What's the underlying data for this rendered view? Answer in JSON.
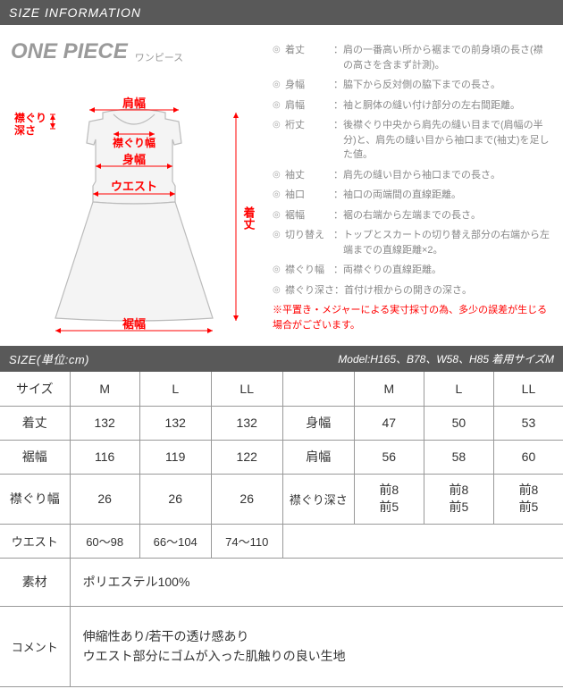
{
  "header": {
    "title": "SIZE INFORMATION"
  },
  "product_title": {
    "en": "ONE PIECE",
    "jp": "ワンピース"
  },
  "diagram": {
    "labels": {
      "katahaba": "肩幅",
      "eri_fukasa_l1": "襟ぐり",
      "eri_fukasa_l2": "深さ",
      "eri_haba": "襟ぐり幅",
      "mihaba": "身幅",
      "waist": "ウエスト",
      "kitake": "着丈",
      "susohaba": "裾幅"
    },
    "colors": {
      "line": "#f00",
      "text": "#f00",
      "garment_stroke": "#bbb",
      "garment_fill": "#f4f4f4"
    }
  },
  "definitions": [
    {
      "label": "着丈",
      "text": "肩の一番高い所から裾までの前身頃の長さ(襟の高さを含まず計測)。"
    },
    {
      "label": "身幅",
      "text": "脇下から反対側の脇下までの長さ。"
    },
    {
      "label": "肩幅",
      "text": "袖と胴体の縫い付け部分の左右間距離。"
    },
    {
      "label": "裄丈",
      "text": "後襟ぐり中央から肩先の縫い目まで(肩幅の半分)と、肩先の縫い目から袖口まで(袖丈)を足した値。"
    },
    {
      "label": "袖丈",
      "text": "肩先の縫い目から袖口までの長さ。"
    },
    {
      "label": "袖口",
      "text": "袖口の両端間の直線距離。"
    },
    {
      "label": "裾幅",
      "text": "裾の右端から左端までの長さ。"
    },
    {
      "label": "切り替え",
      "text": "トップとスカートの切り替え部分の右端から左端までの直線距離×2。"
    },
    {
      "label": "襟ぐり幅",
      "text": "両襟ぐりの直線距離。"
    },
    {
      "label": "襟ぐり深さ",
      "text": "首付け根からの開きの深さ。"
    }
  ],
  "note": "※平置き・メジャーによる実寸採寸の為、多少の誤差が生じる場合がございます。",
  "size_bar": {
    "left": "SIZE(単位:cm)",
    "right": "Model:H165、B78、W58、H85 着用サイズM"
  },
  "table": {
    "headers": {
      "size": "サイズ",
      "m": "M",
      "l": "L",
      "ll": "LL"
    },
    "rows": {
      "kitake": {
        "label": "着丈",
        "m": "132",
        "l": "132",
        "ll": "132"
      },
      "mihaba": {
        "label": "身幅",
        "m": "47",
        "l": "50",
        "ll": "53"
      },
      "susohaba": {
        "label": "裾幅",
        "m": "116",
        "l": "119",
        "ll": "122"
      },
      "katahaba": {
        "label": "肩幅",
        "m": "56",
        "l": "58",
        "ll": "60"
      },
      "erihaba": {
        "label": "襟ぐり幅",
        "m": "26",
        "l": "26",
        "ll": "26"
      },
      "erifukasa": {
        "label": "襟ぐり深さ",
        "m_l1": "前8",
        "m_l2": "前5",
        "l_l1": "前8",
        "l_l2": "前5",
        "ll_l1": "前8",
        "ll_l2": "前5"
      },
      "waist": {
        "label": "ウエスト",
        "m": "60～98",
        "l": "66～104",
        "ll": "74～110"
      },
      "material": {
        "label": "素材",
        "value": "ポリエステル100%"
      },
      "comment": {
        "label": "コメント",
        "l1": "伸縮性あり/若干の透け感あり",
        "l2": "ウエスト部分にゴムが入った肌触りの良い生地"
      }
    }
  }
}
